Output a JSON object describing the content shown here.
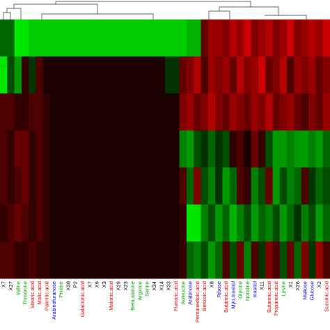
{
  "chart_data": {
    "type": "heatmap",
    "categories": [
      "X7",
      "X27",
      "Valine",
      "Threonine",
      "Stearic.acid",
      "Malic.acid",
      "Palmitic.acid",
      "Arabinofuranose",
      "Proline",
      "X38",
      "P2",
      "Galactonic.acid",
      "X7",
      "X6",
      "X3",
      "Malonic.acid",
      "X29",
      "X23",
      "Beta.alanine",
      "Arginine",
      "Serine",
      "X34",
      "X14",
      "X33",
      "Fumaric.acid",
      "Isoleucine",
      "Arabinose",
      "Pentanedioic.acid",
      "Benzoic.acid",
      "X8",
      "Ribose",
      "Butanoic.acid",
      "Myo.inositol",
      "Glycine",
      "Noraline",
      "Inositol",
      "X11",
      "Butanoic.acid",
      "Propanoic.acid",
      "Lysine",
      "X1",
      "X26",
      "Maltose",
      "Glucose",
      "X2",
      "Succinic.acid"
    ],
    "category_colors": [
      "#000000",
      "#000000",
      "#00a000",
      "#00a000",
      "#e00000",
      "#e00000",
      "#e00000",
      "#0000cc",
      "#00a000",
      "#000000",
      "#000000",
      "#e00000",
      "#000000",
      "#000000",
      "#000000",
      "#e00000",
      "#000000",
      "#000000",
      "#00a000",
      "#00a000",
      "#00a000",
      "#000000",
      "#000000",
      "#000000",
      "#e00000",
      "#00a000",
      "#0000cc",
      "#e00000",
      "#e00000",
      "#000000",
      "#0000cc",
      "#e00000",
      "#0000cc",
      "#00a000",
      "#00a000",
      "#0000cc",
      "#000000",
      "#e00000",
      "#e00000",
      "#00a000",
      "#000000",
      "#000000",
      "#0000cc",
      "#0000cc",
      "#000000",
      "#e00000"
    ],
    "zlim": [
      -1,
      1
    ],
    "low_color": "#00ff00",
    "mid_color": "#000000",
    "high_color": "#ff0000",
    "values": [
      [
        -0.4,
        -0.4,
        -0.9,
        -0.9,
        -0.8,
        -0.8,
        -0.8,
        -0.8,
        -0.8,
        -0.8,
        -0.8,
        -0.8,
        -0.8,
        -0.8,
        -0.8,
        -0.8,
        -0.8,
        -0.8,
        -0.8,
        -0.8,
        -0.8,
        -0.8,
        -0.8,
        -0.8,
        -0.8,
        -0.8,
        -0.7,
        -0.7,
        0.4,
        0.6,
        0.6,
        0.5,
        0.7,
        0.6,
        0.8,
        0.5,
        0.6,
        0.7,
        0.5,
        0.6,
        0.8,
        0.5,
        0.6,
        0.7,
        0.6,
        0.8
      ],
      [
        -0.9,
        -0.3,
        -0.6,
        0.2,
        -0.2,
        0.3,
        0.1,
        0.1,
        0.1,
        0.1,
        0.1,
        0.1,
        0.1,
        0.1,
        0.1,
        0.1,
        0.1,
        0.1,
        0.1,
        0.1,
        0.1,
        0.1,
        0.1,
        -0.2,
        -0.2,
        0.4,
        0.5,
        0.7,
        0.3,
        0.6,
        0.5,
        0.6,
        0.4,
        0.7,
        0.5,
        0.6,
        0.8,
        0.4,
        0.5,
        0.7,
        0.3,
        0.6,
        0.5,
        0.6,
        0.4,
        0.5
      ],
      [
        0.3,
        0.3,
        0.2,
        0.2,
        0.3,
        0.3,
        0.2,
        0.1,
        0.1,
        0.1,
        0.1,
        0.1,
        0.1,
        0.1,
        0.1,
        0.1,
        0.1,
        0.1,
        0.1,
        0.1,
        0.1,
        0.1,
        0.1,
        0.1,
        0.1,
        0.5,
        0.6,
        0.4,
        0.5,
        0.7,
        0.5,
        0.4,
        0.6,
        0.5,
        0.4,
        0.6,
        0.5,
        0.7,
        0.4,
        0.5,
        0.6,
        0.4,
        0.3,
        0.5,
        0.4,
        0.6
      ],
      [
        0.3,
        0.2,
        0.4,
        0.4,
        0.2,
        0.3,
        0.2,
        0.1,
        0.1,
        0.1,
        0.1,
        0.1,
        0.1,
        0.1,
        0.1,
        0.1,
        0.1,
        0.1,
        0.1,
        0.1,
        0.1,
        0.1,
        0.1,
        0.1,
        0.1,
        -0.5,
        -0.6,
        -0.3,
        -0.2,
        -0.4,
        -0.2,
        -0.3,
        0.2,
        0.3,
        0.1,
        0.4,
        0.2,
        -0.3,
        -0.6,
        -0.6,
        -0.5,
        -0.6,
        -0.6,
        -0.5,
        -0.6,
        -0.4
      ],
      [
        0.3,
        0.2,
        0.3,
        0.4,
        0.2,
        0.3,
        0.2,
        0.1,
        0.1,
        0.1,
        0.1,
        0.1,
        0.1,
        0.1,
        0.1,
        0.1,
        0.1,
        0.1,
        0.1,
        0.1,
        0.1,
        0.1,
        0.1,
        0.1,
        0.1,
        0.3,
        -0.4,
        0.5,
        -0.3,
        -0.5,
        -0.2,
        -0.6,
        -0.4,
        0.3,
        0.2,
        -0.5,
        -0.3,
        0.4,
        -0.6,
        -0.3,
        -0.5,
        -0.4,
        0.3,
        -0.2,
        -0.4,
        -0.3
      ],
      [
        0.2,
        0.3,
        0.4,
        0.3,
        0.2,
        0.3,
        0.2,
        0.1,
        0.1,
        0.1,
        0.1,
        0.1,
        0.1,
        0.1,
        0.1,
        0.1,
        0.1,
        0.1,
        0.1,
        0.1,
        0.1,
        0.1,
        0.1,
        0.1,
        0.1,
        0.2,
        -0.9,
        -0.9,
        -0.5,
        -0.3,
        -0.6,
        -0.4,
        -0.7,
        -0.5,
        -0.3,
        -0.6,
        -0.4,
        -0.5,
        -0.3,
        -0.6,
        -0.4,
        -0.2,
        -0.5,
        -0.3,
        -0.6,
        -0.4
      ],
      [
        0.3,
        0.3,
        0.2,
        0.2,
        0.3,
        0.2,
        0.2,
        0.1,
        0.1,
        0.1,
        0.1,
        0.1,
        0.1,
        0.1,
        0.1,
        0.1,
        0.1,
        0.1,
        0.1,
        0.1,
        0.1,
        0.1,
        0.1,
        0.1,
        0.1,
        0.2,
        -0.4,
        -0.5,
        -0.3,
        -0.6,
        -0.4,
        0.3,
        -0.3,
        0.4,
        -0.5,
        0.3,
        -0.2,
        0.5,
        0.3,
        -0.3,
        0.4,
        -0.4,
        0.5,
        -0.2,
        0.6,
        0.3
      ]
    ]
  }
}
